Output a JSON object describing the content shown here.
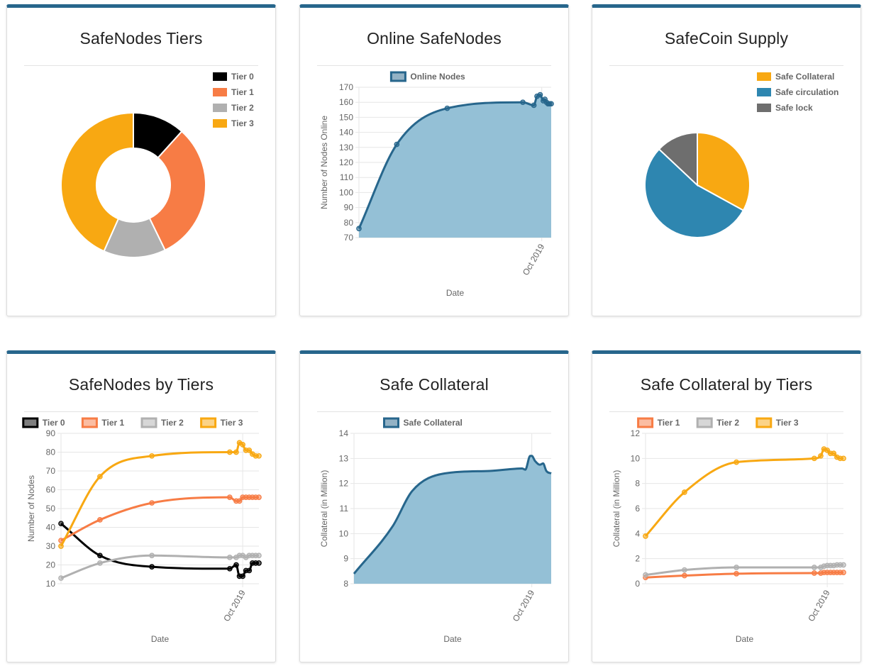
{
  "colors": {
    "card_border": "#27668c",
    "tier0": "#000000",
    "tier1": "#f77c45",
    "tier2": "#b0b0b0",
    "tier3": "#f8a812",
    "online_fill": "#94c0d6",
    "online_line": "#27668c",
    "supply_collateral": "#f8a812",
    "supply_circulation": "#2e86b0",
    "supply_lock": "#6e6e6e"
  },
  "cards": {
    "tiers_donut": {
      "title": "SafeNodes Tiers",
      "chart_data": {
        "type": "pie",
        "variant": "doughnut",
        "labels": [
          "Tier 0",
          "Tier 1",
          "Tier 2",
          "Tier 3"
        ],
        "values": [
          21,
          56,
          25,
          78
        ],
        "colors": [
          "#000000",
          "#f77c45",
          "#b0b0b0",
          "#f8a812"
        ],
        "legend": "top-right"
      }
    },
    "online": {
      "title": "Online SafeNodes",
      "chart_data": {
        "type": "area",
        "series": [
          {
            "name": "Online Nodes",
            "x": [
              0,
              12,
              28,
              52,
              55.5,
              56.5,
              57.5,
              58.5,
              59,
              59.5,
              60,
              60.5,
              61
            ],
            "values": [
              76,
              132,
              156,
              160,
              158,
              164,
              165,
              161,
              162,
              160,
              159,
              159,
              159
            ]
          }
        ],
        "x_tick_labels": [
          {
            "x": 58,
            "label": "Oct 2019"
          }
        ],
        "xlim": [
          0,
          61
        ],
        "ylim": [
          70,
          170
        ],
        "yticks": [
          70,
          80,
          90,
          100,
          110,
          120,
          130,
          140,
          150,
          160,
          170
        ],
        "xlabel": "Date",
        "ylabel": "Number of Nodes Online",
        "legend": "top"
      }
    },
    "supply": {
      "title": "SafeCoin Supply",
      "chart_data": {
        "type": "pie",
        "labels": [
          "Safe Collateral",
          "Safe circulation",
          "Safe lock"
        ],
        "values": [
          33,
          54,
          13
        ],
        "colors": [
          "#f8a812",
          "#2e86b0",
          "#6e6e6e"
        ],
        "legend": "top-right"
      }
    },
    "by_tiers": {
      "title": "SafeNodes by Tiers",
      "chart_data": {
        "type": "line",
        "x": [
          0,
          12,
          28,
          52,
          54,
          55,
          56,
          57,
          58,
          59,
          60,
          61
        ],
        "series": [
          {
            "name": "Tier 0",
            "values": [
              42,
              25,
              19,
              18,
              20,
              14,
              14,
              17,
              17,
              21,
              21,
              21
            ]
          },
          {
            "name": "Tier 1",
            "values": [
              33,
              44,
              53,
              56,
              54,
              54,
              56,
              56,
              56,
              56,
              56,
              56
            ]
          },
          {
            "name": "Tier 2",
            "values": [
              13,
              21,
              25,
              24,
              24,
              25,
              25,
              24,
              25,
              25,
              25,
              25
            ]
          },
          {
            "name": "Tier 3",
            "values": [
              30,
              67,
              78,
              80,
              80,
              85,
              84,
              81,
              81,
              79,
              78,
              78
            ]
          }
        ],
        "x_tick_labels": [
          {
            "x": 56,
            "label": "Oct 2019"
          }
        ],
        "xlim": [
          0,
          61
        ],
        "ylim": [
          10,
          90
        ],
        "yticks": [
          10,
          20,
          30,
          40,
          50,
          60,
          70,
          80,
          90
        ],
        "xlabel": "Date",
        "ylabel": "Number of Nodes",
        "legend": "top"
      }
    },
    "collateral": {
      "title": "Safe Collateral",
      "chart_data": {
        "type": "area",
        "series": [
          {
            "name": "Safe Collateral",
            "x": [
              0,
              12,
              18,
              28,
              42,
              52,
              53,
              54.5,
              55,
              56,
              57.5,
              58.5,
              59.5,
              61
            ],
            "values": [
              8.4,
              10.3,
              11.7,
              12.4,
              12.5,
              12.6,
              12.55,
              13.1,
              13.1,
              12.9,
              12.75,
              12.8,
              12.5,
              12.4
            ]
          }
        ],
        "x_tick_labels": [
          {
            "x": 55,
            "label": "Oct 2019"
          }
        ],
        "xlim": [
          0,
          61
        ],
        "ylim": [
          8,
          14
        ],
        "yticks": [
          8,
          9,
          10,
          11,
          12,
          13,
          14
        ],
        "xlabel": "Date",
        "ylabel": "Collateral (in Million)",
        "legend": "top"
      }
    },
    "collateral_by_tiers": {
      "title": "Safe Collateral by Tiers",
      "chart_data": {
        "type": "line",
        "x": [
          0,
          12,
          28,
          52,
          54,
          55,
          56,
          57,
          58,
          59,
          60,
          61
        ],
        "series": [
          {
            "name": "Tier 1",
            "values": [
              0.5,
              0.65,
              0.8,
              0.85,
              0.85,
              0.9,
              0.9,
              0.9,
              0.9,
              0.9,
              0.9,
              0.9
            ]
          },
          {
            "name": "Tier 2",
            "values": [
              0.7,
              1.1,
              1.3,
              1.3,
              1.3,
              1.4,
              1.45,
              1.45,
              1.45,
              1.5,
              1.5,
              1.5
            ]
          },
          {
            "name": "Tier 3",
            "values": [
              3.8,
              7.3,
              9.7,
              10.0,
              10.2,
              10.75,
              10.65,
              10.4,
              10.4,
              10.1,
              10.0,
              10.0
            ]
          }
        ],
        "x_tick_labels": [
          {
            "x": 56,
            "label": "Oct 2019"
          }
        ],
        "xlim": [
          0,
          61
        ],
        "ylim": [
          0,
          12
        ],
        "yticks": [
          0,
          2,
          4,
          6,
          8,
          10,
          12
        ],
        "xlabel": "Date",
        "ylabel": "Collateral (in Million)",
        "legend": "top"
      }
    }
  }
}
